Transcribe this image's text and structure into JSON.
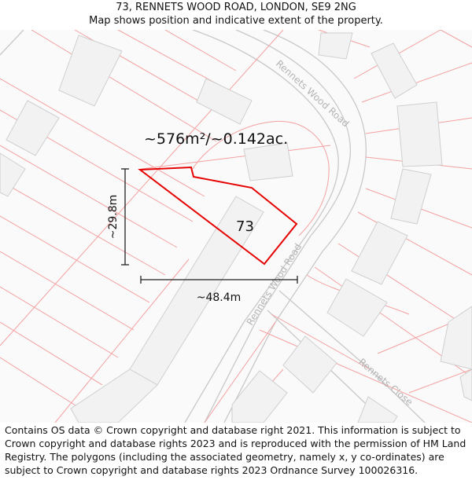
{
  "header": {
    "title": "73, RENNETS WOOD ROAD, LONDON, SE9 2NG",
    "subtitle": "Map shows position and indicative extent of the property."
  },
  "map": {
    "area_label": "~576m²/~0.142ac.",
    "plot_number": "73",
    "dim_vertical": "~29.8m",
    "dim_horizontal": "~48.4m",
    "streets": {
      "rennets_wood_road_upper": "Rennets Wood Road",
      "rennets_wood_road_lower": "Rennets Wood Road",
      "rennets_close": "Rennets Close"
    },
    "colors": {
      "boundary": "#e60000",
      "parcel_lines": "#f4a0a0",
      "road_edge": "#c8c8c8",
      "building_fill": "#f2f2f2",
      "building_stroke": "#cfcfcf"
    }
  },
  "footer": {
    "attribution": "Contains OS data © Crown copyright and database right 2021. This information is subject to Crown copyright and database rights 2023 and is reproduced with the permission of HM Land Registry. The polygons (including the associated geometry, namely x, y co-ordinates) are subject to Crown copyright and database rights 2023 Ordnance Survey 100026316."
  }
}
